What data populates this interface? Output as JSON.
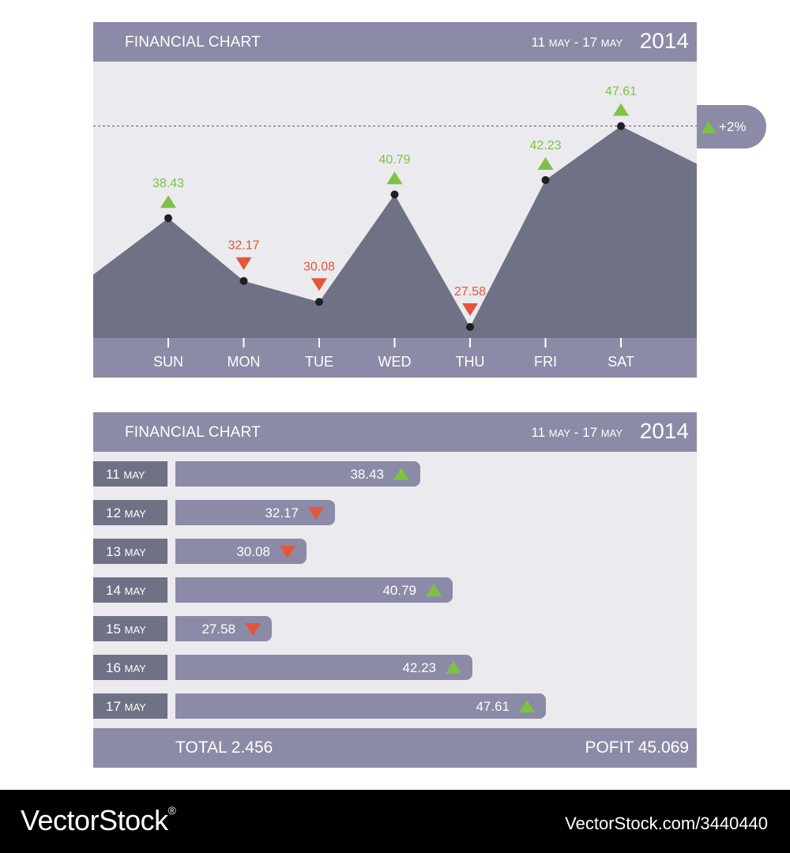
{
  "colors": {
    "header": "#8b8ba7",
    "area": "#6f7185",
    "panel": "#ebeaef",
    "up": "#7dc242",
    "down": "#e5553a",
    "point": "#1f1f24",
    "text": "#ffffff"
  },
  "line_panel": {
    "title": "FINANCIAL CHART",
    "range_start_day": "11",
    "range_start_month": "MAY",
    "range_sep": " - ",
    "range_end_day": "17",
    "range_end_month": "MAY",
    "year": "2014",
    "badge": "+2%",
    "badge_icon": "triangle-up"
  },
  "chart_data": [
    {
      "type": "area",
      "categories": [
        "SUN",
        "MON",
        "TUE",
        "WED",
        "THU",
        "FRI",
        "SAT"
      ],
      "values": [
        38.43,
        32.17,
        30.08,
        40.79,
        27.58,
        42.23,
        47.61
      ],
      "value_labels": [
        "38.43",
        "32.17",
        "30.08",
        "40.79",
        "27.58",
        "42.23",
        "47.61"
      ],
      "trend": [
        "up",
        "down",
        "down",
        "up",
        "down",
        "up",
        "up"
      ],
      "reference_line": 47.61,
      "grid": false
    },
    {
      "type": "bar",
      "orientation": "horizontal",
      "categories": [
        {
          "day": "11",
          "month": "MAY"
        },
        {
          "day": "12",
          "month": "MAY"
        },
        {
          "day": "13",
          "month": "MAY"
        },
        {
          "day": "14",
          "month": "MAY"
        },
        {
          "day": "15",
          "month": "MAY"
        },
        {
          "day": "16",
          "month": "MAY"
        },
        {
          "day": "17",
          "month": "MAY"
        }
      ],
      "values": [
        38.43,
        32.17,
        30.08,
        40.79,
        27.58,
        42.23,
        47.61
      ],
      "value_labels": [
        "38.43",
        "32.17",
        "30.08",
        "40.79",
        "27.58",
        "42.23",
        "47.61"
      ],
      "trend": [
        "up",
        "down",
        "down",
        "up",
        "down",
        "up",
        "up"
      ]
    }
  ],
  "bar_panel": {
    "title": "FINANCIAL CHART",
    "range_start_day": "11",
    "range_start_month": "MAY",
    "range_sep": " - ",
    "range_end_day": "17",
    "range_end_month": "MAY",
    "year": "2014",
    "total": "TOTAL 2.456",
    "profit": "POFIT 45.069"
  },
  "watermark": {
    "brand": "VectorStock",
    "brand_mark": "®",
    "id": "VectorStock.com/3440440"
  }
}
